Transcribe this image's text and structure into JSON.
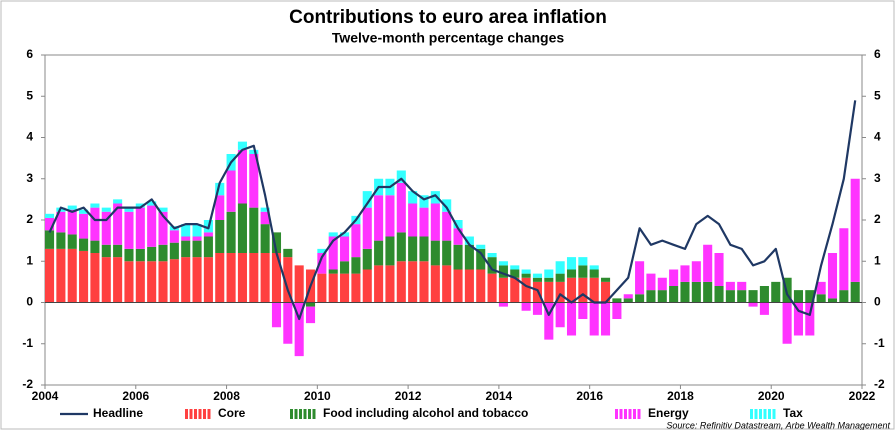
{
  "chart_data": {
    "type": "bar",
    "title": "Contributions to euro area inflation",
    "subtitle": "Twelve-month percentage changes",
    "source": "Source: Refinitiv Datastream, Arbe Wealth Management",
    "stacked": true,
    "grid": false,
    "legend": "bottom",
    "xlim": [
      2004,
      2022
    ],
    "xticks": [
      2004,
      2006,
      2008,
      2010,
      2012,
      2014,
      2016,
      2018,
      2020,
      2022
    ],
    "ylim": [
      -2,
      6
    ],
    "yticks": [
      -2,
      -1,
      0,
      1,
      2,
      3,
      4,
      5,
      6
    ],
    "y2lim": [
      -2,
      6
    ],
    "y2ticks": [
      -2,
      -1,
      0,
      1,
      2,
      3,
      4,
      5,
      6
    ],
    "x": [
      2004,
      2004.25,
      2004.5,
      2004.75,
      2005,
      2005.25,
      2005.5,
      2005.75,
      2006,
      2006.25,
      2006.5,
      2006.75,
      2007,
      2007.25,
      2007.5,
      2007.75,
      2008,
      2008.25,
      2008.5,
      2008.75,
      2009,
      2009.25,
      2009.5,
      2009.75,
      2010,
      2010.25,
      2010.5,
      2010.75,
      2011,
      2011.25,
      2011.5,
      2011.75,
      2012,
      2012.25,
      2012.5,
      2012.75,
      2013,
      2013.25,
      2013.5,
      2013.75,
      2014,
      2014.25,
      2014.5,
      2014.75,
      2015,
      2015.25,
      2015.5,
      2015.75,
      2016,
      2016.25,
      2016.5,
      2016.75,
      2017,
      2017.25,
      2017.5,
      2017.75,
      2018,
      2018.25,
      2018.5,
      2018.75,
      2019,
      2019.25,
      2019.5,
      2019.75,
      2020,
      2020.25,
      2020.5,
      2020.75,
      2021,
      2021.25,
      2021.5,
      2021.75
    ],
    "series": [
      {
        "name": "Core",
        "type": "bar",
        "color": "#ff4040",
        "values": [
          1.3,
          1.3,
          1.3,
          1.25,
          1.2,
          1.1,
          1.1,
          1.0,
          1.0,
          1.0,
          1.0,
          1.05,
          1.1,
          1.1,
          1.1,
          1.2,
          1.2,
          1.2,
          1.2,
          1.2,
          1.2,
          1.1,
          0.9,
          0.8,
          0.7,
          0.7,
          0.7,
          0.7,
          0.8,
          0.9,
          0.9,
          1.0,
          1.0,
          1.0,
          0.9,
          0.9,
          0.8,
          0.8,
          0.8,
          0.7,
          0.6,
          0.6,
          0.6,
          0.5,
          0.5,
          0.5,
          0.6,
          0.6,
          0.6,
          0.5,
          null,
          null,
          null,
          null,
          null,
          null,
          null,
          null,
          null,
          null,
          null,
          null,
          null,
          null,
          null,
          null,
          null,
          null,
          null,
          null,
          null,
          null
        ]
      },
      {
        "name": "Food including alcohol and tobacco",
        "type": "bar",
        "color": "#2e8b2e",
        "values": [
          0.45,
          0.4,
          0.35,
          0.3,
          0.3,
          0.3,
          0.3,
          0.3,
          0.3,
          0.35,
          0.4,
          0.4,
          0.4,
          0.4,
          0.5,
          0.8,
          1.0,
          1.2,
          1.1,
          0.7,
          0.5,
          0.2,
          0.0,
          -0.1,
          0.0,
          0.1,
          0.3,
          0.4,
          0.5,
          0.6,
          0.7,
          0.7,
          0.6,
          0.6,
          0.6,
          0.6,
          0.6,
          0.6,
          0.5,
          0.4,
          0.3,
          0.2,
          0.1,
          0.1,
          0.1,
          0.2,
          0.2,
          0.3,
          0.2,
          0.1,
          0.1,
          0.1,
          0.2,
          0.3,
          0.3,
          0.4,
          0.5,
          0.5,
          0.5,
          0.4,
          0.3,
          0.3,
          0.3,
          0.4,
          0.5,
          0.6,
          0.3,
          0.3,
          0.2,
          0.1,
          0.3,
          0.5
        ]
      },
      {
        "name": "Energy",
        "type": "bar",
        "color": "#ff33ff",
        "values": [
          0.3,
          0.5,
          0.6,
          0.6,
          0.8,
          0.8,
          1.0,
          0.9,
          1.0,
          1.0,
          0.8,
          0.3,
          0.1,
          0.1,
          0.1,
          0.6,
          1.0,
          1.3,
          1.3,
          0.3,
          -0.6,
          -1.0,
          -1.3,
          -0.4,
          0.5,
          0.8,
          0.6,
          0.8,
          1.0,
          1.1,
          1.0,
          1.2,
          0.8,
          0.7,
          0.9,
          0.7,
          0.4,
          0.0,
          0.0,
          0.0,
          -0.1,
          0.0,
          -0.2,
          -0.3,
          -0.9,
          -0.6,
          -0.8,
          -0.4,
          -0.8,
          -0.8,
          -0.4,
          0.1,
          0.8,
          0.4,
          0.3,
          0.4,
          0.4,
          0.5,
          0.9,
          0.8,
          0.2,
          0.2,
          -0.1,
          -0.3,
          0.0,
          -1.0,
          -0.8,
          -0.8,
          0.3,
          1.1,
          1.5,
          2.5
        ]
      },
      {
        "name": "Tax",
        "type": "bar",
        "color": "#33ffff",
        "values": [
          0.1,
          0.1,
          0.1,
          0.1,
          0.1,
          0.1,
          0.1,
          0.1,
          0.1,
          0.1,
          0.1,
          0.1,
          0.3,
          0.3,
          0.3,
          0.3,
          0.4,
          0.2,
          0.1,
          0.1,
          0,
          0,
          0,
          0,
          0.1,
          0.1,
          0.1,
          0.2,
          0.4,
          0.4,
          0.4,
          0.3,
          0.3,
          0.3,
          0.3,
          0.3,
          0.2,
          0.2,
          0.1,
          0.1,
          0.1,
          0.1,
          0.1,
          0.1,
          0.2,
          0.3,
          0.3,
          0.2,
          0.1,
          0,
          0,
          0,
          0,
          0,
          0,
          0,
          0,
          0,
          0,
          0,
          0,
          0,
          0,
          0,
          0,
          0,
          0,
          0,
          0,
          0,
          0,
          0
        ]
      },
      {
        "name": "Headline",
        "type": "line",
        "color": "#1f3864",
        "values": [
          1.7,
          2.3,
          2.2,
          2.3,
          2.0,
          2.0,
          2.3,
          2.3,
          2.3,
          2.5,
          2.1,
          1.8,
          1.9,
          1.9,
          1.8,
          2.9,
          3.4,
          3.7,
          3.8,
          2.6,
          1.2,
          0.3,
          -0.4,
          0.4,
          1.1,
          1.5,
          1.7,
          2.0,
          2.4,
          2.8,
          2.8,
          3.0,
          2.7,
          2.5,
          2.6,
          2.3,
          1.8,
          1.4,
          1.2,
          0.8,
          0.7,
          0.6,
          0.4,
          0.3,
          -0.3,
          0.2,
          0.0,
          0.2,
          0.0,
          0.0,
          0.3,
          0.6,
          1.8,
          1.4,
          1.5,
          1.4,
          1.3,
          1.9,
          2.1,
          1.9,
          1.4,
          1.3,
          0.9,
          1.0,
          1.3,
          0.2,
          -0.2,
          -0.3,
          0.9,
          1.9,
          3.0,
          4.9
        ]
      }
    ]
  }
}
